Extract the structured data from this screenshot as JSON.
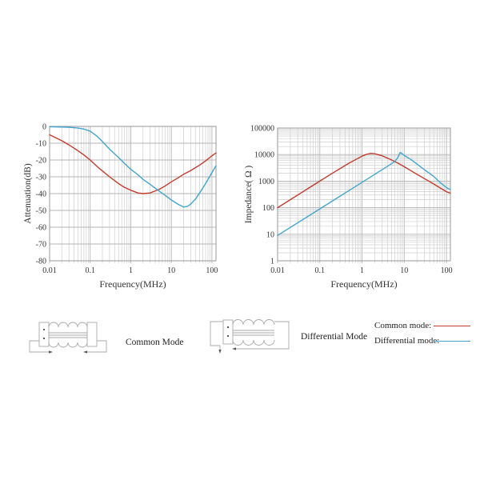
{
  "colors": {
    "common_mode": "#c23b2e",
    "differential_mode": "#41a5cd",
    "grid_minor": "#cfcfcf",
    "grid_major": "#b5b5b5",
    "frame": "#999999",
    "text": "#333333",
    "schematic": "#a8a8a8"
  },
  "chart_data": [
    {
      "type": "line",
      "title": "",
      "xlabel": "Frequency(MHz)",
      "ylabel": "Attenuation(dB)",
      "xscale": "log",
      "yscale": "linear",
      "xlim": [
        0.01,
        126
      ],
      "ylim": [
        -80,
        0
      ],
      "grid": true,
      "xticks": [
        {
          "v": 0.01,
          "label": "0.01"
        },
        {
          "v": 0.1,
          "label": "0.1"
        },
        {
          "v": 1,
          "label": "1"
        },
        {
          "v": 10,
          "label": "10"
        },
        {
          "v": 100,
          "label": "100"
        }
      ],
      "yticks": [
        {
          "v": 0,
          "label": "0"
        },
        {
          "v": -10,
          "label": "-10"
        },
        {
          "v": -20,
          "label": "-20"
        },
        {
          "v": -30,
          "label": "-30"
        },
        {
          "v": -40,
          "label": "-40"
        },
        {
          "v": -50,
          "label": "-50"
        },
        {
          "v": -60,
          "label": "-60"
        },
        {
          "v": -70,
          "label": "-70"
        },
        {
          "v": -80,
          "label": "-80"
        }
      ],
      "series": [
        {
          "name": "Common mode",
          "color_key": "common_mode",
          "points": [
            [
              0.01,
              -5
            ],
            [
              0.015,
              -7
            ],
            [
              0.02,
              -8.5
            ],
            [
              0.03,
              -11
            ],
            [
              0.05,
              -14.5
            ],
            [
              0.07,
              -17
            ],
            [
              0.1,
              -20
            ],
            [
              0.15,
              -24
            ],
            [
              0.2,
              -26.5
            ],
            [
              0.3,
              -30
            ],
            [
              0.5,
              -34
            ],
            [
              0.7,
              -36.3
            ],
            [
              1,
              -38
            ],
            [
              1.5,
              -39.6
            ],
            [
              2,
              -40
            ],
            [
              3,
              -39.6
            ],
            [
              5,
              -37.5
            ],
            [
              7,
              -35.5
            ],
            [
              10,
              -33
            ],
            [
              15,
              -30.5
            ],
            [
              20,
              -28.5
            ],
            [
              30,
              -26.3
            ],
            [
              50,
              -23
            ],
            [
              70,
              -20.5
            ],
            [
              100,
              -17.5
            ],
            [
              126,
              -15.8
            ]
          ]
        },
        {
          "name": "Differential mode",
          "color_key": "differential_mode",
          "points": [
            [
              0.01,
              -0.2
            ],
            [
              0.03,
              -0.5
            ],
            [
              0.05,
              -1
            ],
            [
              0.07,
              -1.6
            ],
            [
              0.1,
              -2.8
            ],
            [
              0.15,
              -6
            ],
            [
              0.2,
              -9
            ],
            [
              0.3,
              -13.5
            ],
            [
              0.5,
              -18.5
            ],
            [
              0.7,
              -22
            ],
            [
              1,
              -25.5
            ],
            [
              1.5,
              -28.8
            ],
            [
              2,
              -31.5
            ],
            [
              3,
              -34.5
            ],
            [
              5,
              -38.5
            ],
            [
              7,
              -41
            ],
            [
              10,
              -43.8
            ],
            [
              15,
              -46.5
            ],
            [
              20,
              -48
            ],
            [
              25,
              -47.6
            ],
            [
              30,
              -46.3
            ],
            [
              40,
              -43
            ],
            [
              50,
              -39.5
            ],
            [
              70,
              -34
            ],
            [
              100,
              -27.5
            ],
            [
              126,
              -23.5
            ]
          ]
        }
      ]
    },
    {
      "type": "line",
      "title": "",
      "xlabel": "Frequency(MHz)",
      "ylabel": "Impedance( Ω )",
      "xscale": "log",
      "yscale": "log",
      "xlim": [
        0.01,
        124
      ],
      "ylim": [
        1,
        100000
      ],
      "grid": true,
      "xticks": [
        {
          "v": 0.01,
          "label": "0.01"
        },
        {
          "v": 0.1,
          "label": "0.1"
        },
        {
          "v": 1,
          "label": "1"
        },
        {
          "v": 10,
          "label": "10"
        },
        {
          "v": 100,
          "label": "100"
        }
      ],
      "yticks": [
        {
          "v": 1,
          "label": "1"
        },
        {
          "v": 10,
          "label": "10"
        },
        {
          "v": 100,
          "label": "100"
        },
        {
          "v": 1000,
          "label": "1000"
        },
        {
          "v": 10000,
          "label": "10000"
        },
        {
          "v": 100000,
          "label": "100000"
        }
      ],
      "series": [
        {
          "name": "Common mode",
          "color_key": "common_mode",
          "points": [
            [
              0.01,
              100
            ],
            [
              0.02,
              200
            ],
            [
              0.05,
              500
            ],
            [
              0.1,
              1000
            ],
            [
              0.2,
              2000
            ],
            [
              0.5,
              4800
            ],
            [
              0.8,
              7200
            ],
            [
              1,
              8700
            ],
            [
              1.3,
              10300
            ],
            [
              1.6,
              11000
            ],
            [
              2,
              10700
            ],
            [
              3,
              9000
            ],
            [
              5,
              6300
            ],
            [
              7,
              4800
            ],
            [
              10,
              3500
            ],
            [
              20,
              1800
            ],
            [
              30,
              1250
            ],
            [
              50,
              780
            ],
            [
              70,
              560
            ],
            [
              100,
              400
            ],
            [
              124,
              350
            ]
          ]
        },
        {
          "name": "Differential mode",
          "color_key": "differential_mode",
          "points": [
            [
              0.01,
              9
            ],
            [
              0.02,
              18
            ],
            [
              0.05,
              45
            ],
            [
              0.1,
              90
            ],
            [
              0.2,
              180
            ],
            [
              0.5,
              450
            ],
            [
              1,
              900
            ],
            [
              2,
              1800
            ],
            [
              3,
              2700
            ],
            [
              5,
              4500
            ],
            [
              6,
              5600
            ],
            [
              7,
              7500
            ],
            [
              8,
              12000
            ],
            [
              9,
              10600
            ],
            [
              10,
              9300
            ],
            [
              15,
              6200
            ],
            [
              20,
              4400
            ],
            [
              30,
              2700
            ],
            [
              50,
              1500
            ],
            [
              70,
              900
            ],
            [
              100,
              570
            ],
            [
              124,
              480
            ]
          ]
        }
      ]
    }
  ],
  "figures": {
    "common_mode_label": "Common Mode",
    "differential_mode_label": "Differential Mode"
  },
  "legend": {
    "items": [
      {
        "label": "Common mode:",
        "color_key": "common_mode"
      },
      {
        "label": "Differential mode:",
        "color_key": "differential_mode"
      }
    ]
  }
}
